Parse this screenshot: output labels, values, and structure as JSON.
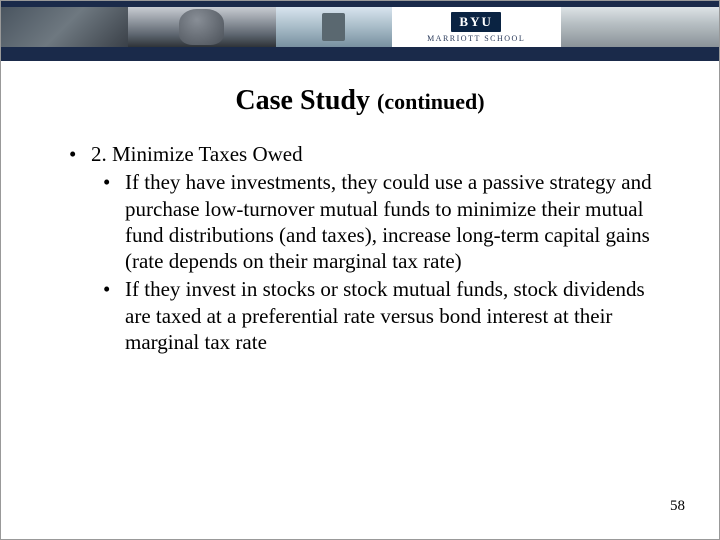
{
  "banner": {
    "logo_text": "BYU",
    "school_text": "MARRIOTT SCHOOL",
    "colors": {
      "navy": "#1a2a4a",
      "byu_blue": "#0a2342"
    }
  },
  "title": {
    "main": "Case Study",
    "suffix": "(continued)"
  },
  "bullets": {
    "level1": "2. Minimize Taxes Owed",
    "level2": [
      "If they have investments, they could use a passive strategy and purchase low-turnover mutual funds to minimize their mutual fund distributions (and taxes), increase long-term capital gains (rate depends on their marginal tax rate)",
      "If they invest in stocks or stock mutual funds, stock dividends are taxed at a preferential rate versus bond interest at their marginal tax rate"
    ]
  },
  "page_number": "58"
}
